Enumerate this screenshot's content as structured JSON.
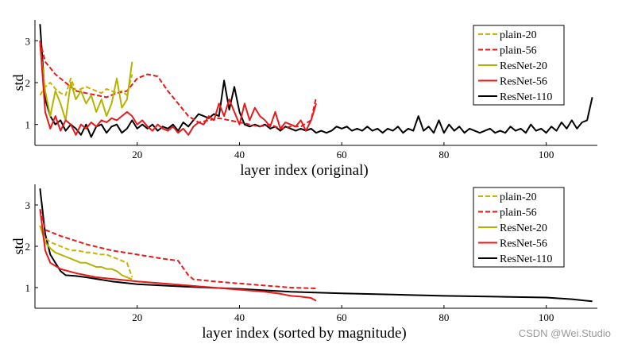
{
  "watermark": "CSDN @Wei.Studio",
  "chart_data": [
    {
      "type": "line",
      "title": "",
      "xlabel": "layer index (original)",
      "ylabel": "std",
      "xlim": [
        0,
        110
      ],
      "ylim": [
        0.5,
        3.5
      ],
      "xticks": [
        20,
        40,
        60,
        80,
        100
      ],
      "yticks": [
        1,
        2,
        3
      ],
      "legend_position": "top-right",
      "series": [
        {
          "name": "plain-20",
          "color": "#c8b400",
          "style": "dashed",
          "x": [
            1,
            2,
            3,
            4,
            5,
            6,
            7,
            8,
            9,
            10,
            11,
            12,
            13,
            14,
            15,
            16,
            17,
            18,
            19
          ],
          "y": [
            1.7,
            1.9,
            2.0,
            1.85,
            1.75,
            1.7,
            2.1,
            1.8,
            1.85,
            1.9,
            1.85,
            1.8,
            1.75,
            1.85,
            1.8,
            1.75,
            1.8,
            1.7,
            2.2
          ]
        },
        {
          "name": "plain-56",
          "color": "#e8191a",
          "style": "dashed",
          "x": [
            1,
            2,
            4,
            6,
            8,
            10,
            12,
            14,
            16,
            18,
            20,
            22,
            24,
            26,
            28,
            30,
            32,
            34,
            36,
            38,
            40,
            42,
            44,
            46,
            48,
            50,
            52,
            54,
            55
          ],
          "y": [
            3.0,
            2.5,
            2.2,
            2.0,
            1.8,
            1.75,
            1.7,
            1.65,
            1.75,
            1.8,
            2.1,
            2.2,
            2.15,
            1.8,
            1.5,
            1.2,
            1.05,
            1.1,
            1.15,
            1.1,
            1.05,
            1.0,
            0.95,
            1.0,
            0.9,
            0.95,
            0.95,
            1.1,
            1.65
          ]
        },
        {
          "name": "ResNet-20",
          "color": "#b4b400",
          "style": "solid",
          "x": [
            1,
            2,
            3,
            4,
            5,
            6,
            7,
            8,
            9,
            10,
            11,
            12,
            13,
            14,
            15,
            16,
            17,
            18,
            19
          ],
          "y": [
            2.9,
            1.8,
            1.2,
            1.8,
            1.5,
            1.1,
            2.0,
            1.6,
            1.8,
            1.5,
            1.7,
            1.3,
            1.6,
            1.2,
            1.5,
            2.1,
            1.4,
            1.6,
            2.5
          ]
        },
        {
          "name": "ResNet-56",
          "color": "#e8191a",
          "style": "solid",
          "x": [
            1,
            2,
            3,
            4,
            5,
            6,
            7,
            8,
            9,
            10,
            11,
            12,
            13,
            14,
            15,
            16,
            17,
            18,
            19,
            20,
            21,
            22,
            23,
            24,
            25,
            26,
            27,
            28,
            29,
            30,
            31,
            32,
            33,
            34,
            35,
            36,
            37,
            38,
            39,
            40,
            41,
            42,
            43,
            44,
            45,
            46,
            47,
            48,
            49,
            50,
            51,
            52,
            53,
            54,
            55
          ],
          "y": [
            3.0,
            1.3,
            0.9,
            1.2,
            0.85,
            1.1,
            1.0,
            0.75,
            1.0,
            0.9,
            1.05,
            0.95,
            1.1,
            1.05,
            1.15,
            1.1,
            1.2,
            1.3,
            1.2,
            1.0,
            1.1,
            0.95,
            0.85,
            1.0,
            0.9,
            0.85,
            0.95,
            0.8,
            0.9,
            0.75,
            0.95,
            1.05,
            1.0,
            1.2,
            1.1,
            1.5,
            1.2,
            1.6,
            1.3,
            1.0,
            1.5,
            1.1,
            1.4,
            1.2,
            1.1,
            0.95,
            1.3,
            0.9,
            1.05,
            1.0,
            0.95,
            1.1,
            0.85,
            1.1,
            1.5
          ]
        },
        {
          "name": "ResNet-110",
          "color": "#000000",
          "style": "solid",
          "x": [
            1,
            2,
            3,
            4,
            5,
            6,
            7,
            8,
            9,
            10,
            11,
            12,
            13,
            14,
            15,
            16,
            17,
            18,
            19,
            20,
            21,
            22,
            23,
            24,
            25,
            26,
            27,
            28,
            29,
            30,
            31,
            32,
            33,
            34,
            35,
            36,
            37,
            38,
            39,
            40,
            41,
            42,
            43,
            44,
            45,
            46,
            47,
            48,
            49,
            50,
            51,
            52,
            53,
            54,
            55,
            56,
            57,
            58,
            59,
            60,
            61,
            62,
            63,
            64,
            65,
            66,
            67,
            68,
            69,
            70,
            71,
            72,
            73,
            74,
            75,
            76,
            77,
            78,
            79,
            80,
            81,
            82,
            83,
            84,
            85,
            86,
            87,
            88,
            89,
            90,
            91,
            92,
            93,
            94,
            95,
            96,
            97,
            98,
            99,
            100,
            101,
            102,
            103,
            104,
            105,
            106,
            107,
            108,
            109
          ],
          "y": [
            3.4,
            1.6,
            1.2,
            1.0,
            1.1,
            0.85,
            1.0,
            0.9,
            0.75,
            1.0,
            0.7,
            0.95,
            1.0,
            0.8,
            0.95,
            1.0,
            0.8,
            0.9,
            1.1,
            0.9,
            1.0,
            0.9,
            1.0,
            0.85,
            0.95,
            0.9,
            1.0,
            0.85,
            1.05,
            0.95,
            1.1,
            1.25,
            1.2,
            1.15,
            1.25,
            1.2,
            2.05,
            1.35,
            1.9,
            1.3,
            1.0,
            0.95,
            1.0,
            0.95,
            1.0,
            0.9,
            0.95,
            0.85,
            0.95,
            0.9,
            0.85,
            0.9,
            0.85,
            0.9,
            0.8,
            0.85,
            0.8,
            0.85,
            0.95,
            0.9,
            0.95,
            0.85,
            0.9,
            0.85,
            0.95,
            0.85,
            0.9,
            0.8,
            0.9,
            0.85,
            0.95,
            0.8,
            0.9,
            0.85,
            1.2,
            0.85,
            0.95,
            0.8,
            1.1,
            0.8,
            1.0,
            0.85,
            0.95,
            0.8,
            0.9,
            0.85,
            0.8,
            0.85,
            0.9,
            0.8,
            0.85,
            0.8,
            0.95,
            0.85,
            0.9,
            0.8,
            1.0,
            0.85,
            0.9,
            0.8,
            0.95,
            0.85,
            1.05,
            0.9,
            1.1,
            0.9,
            1.05,
            1.1,
            1.65
          ]
        }
      ]
    },
    {
      "type": "line",
      "title": "",
      "xlabel": "layer index (sorted by magnitude)",
      "ylabel": "std",
      "xlim": [
        0,
        110
      ],
      "ylim": [
        0.5,
        3.5
      ],
      "xticks": [
        20,
        40,
        60,
        80,
        100
      ],
      "yticks": [
        1,
        2,
        3
      ],
      "legend_position": "top-right",
      "series": [
        {
          "name": "plain-20",
          "color": "#c8b400",
          "style": "dashed",
          "x": [
            1,
            2,
            3,
            4,
            5,
            6,
            7,
            8,
            9,
            10,
            11,
            12,
            13,
            14,
            15,
            16,
            17,
            18,
            19
          ],
          "y": [
            2.5,
            2.2,
            2.1,
            2.05,
            2.0,
            1.95,
            1.9,
            1.9,
            1.88,
            1.85,
            1.85,
            1.82,
            1.8,
            1.8,
            1.75,
            1.7,
            1.65,
            1.6,
            1.25
          ]
        },
        {
          "name": "plain-56",
          "color": "#e8191a",
          "style": "dashed",
          "x": [
            1,
            2,
            5,
            10,
            15,
            20,
            25,
            28,
            30,
            31,
            35,
            40,
            45,
            50,
            55
          ],
          "y": [
            2.9,
            2.4,
            2.25,
            2.05,
            1.9,
            1.8,
            1.7,
            1.65,
            1.3,
            1.2,
            1.15,
            1.1,
            1.05,
            1.0,
            0.98
          ]
        },
        {
          "name": "ResNet-20",
          "color": "#b4b400",
          "style": "solid",
          "x": [
            1,
            2,
            3,
            4,
            5,
            6,
            7,
            8,
            9,
            10,
            11,
            12,
            13,
            14,
            15,
            16,
            17,
            18,
            19
          ],
          "y": [
            2.5,
            2.1,
            1.95,
            1.85,
            1.8,
            1.75,
            1.7,
            1.65,
            1.6,
            1.6,
            1.55,
            1.5,
            1.5,
            1.45,
            1.45,
            1.4,
            1.3,
            1.25,
            1.2
          ]
        },
        {
          "name": "ResNet-56",
          "color": "#e8191a",
          "style": "solid",
          "x": [
            1,
            2,
            3,
            5,
            8,
            12,
            16,
            20,
            25,
            30,
            35,
            40,
            45,
            48,
            50,
            52,
            54,
            55
          ],
          "y": [
            2.9,
            1.9,
            1.6,
            1.45,
            1.35,
            1.25,
            1.2,
            1.15,
            1.1,
            1.05,
            1.0,
            0.95,
            0.9,
            0.85,
            0.8,
            0.78,
            0.75,
            0.68
          ]
        },
        {
          "name": "ResNet-110",
          "color": "#000000",
          "style": "solid",
          "x": [
            1,
            2,
            3,
            4,
            5,
            6,
            8,
            10,
            15,
            20,
            30,
            40,
            50,
            60,
            70,
            80,
            90,
            100,
            105,
            108,
            109
          ],
          "y": [
            3.4,
            2.3,
            1.8,
            1.6,
            1.4,
            1.3,
            1.28,
            1.25,
            1.15,
            1.08,
            1.02,
            0.97,
            0.9,
            0.86,
            0.83,
            0.8,
            0.78,
            0.76,
            0.72,
            0.68,
            0.67
          ]
        }
      ]
    }
  ]
}
